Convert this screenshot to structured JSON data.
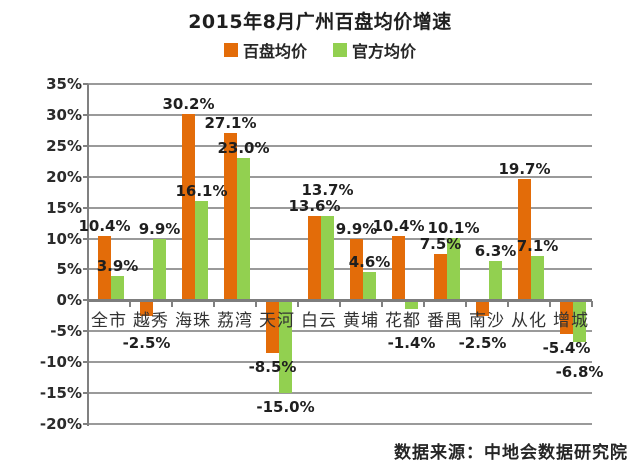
{
  "title": "2015年8月广州百盘均价增速",
  "source": "数据来源：中地会数据研究院",
  "legend": {
    "items": [
      {
        "label": "百盘均价",
        "color": "#E36C09",
        "icon": "orange-square-swatch"
      },
      {
        "label": "官方均价",
        "color": "#92D050",
        "icon": "green-square-swatch"
      }
    ]
  },
  "chart_data": {
    "type": "bar",
    "title": "2015年8月广州百盘均价增速",
    "xlabel": "",
    "ylabel": "",
    "categories": [
      "全市",
      "越秀",
      "海珠",
      "荔湾",
      "天河",
      "白云",
      "黄埔",
      "花都",
      "番禺",
      "南沙",
      "从化",
      "增城"
    ],
    "series": [
      {
        "name": "百盘均价",
        "color": "#E36C09",
        "values": [
          10.4,
          -2.5,
          30.2,
          27.1,
          -8.5,
          13.6,
          9.9,
          10.4,
          7.5,
          -2.5,
          19.7,
          -5.4
        ]
      },
      {
        "name": "官方均价",
        "color": "#92D050",
        "values": [
          3.9,
          9.9,
          16.1,
          23.0,
          -15.0,
          13.7,
          4.6,
          -1.4,
          10.1,
          6.3,
          7.1,
          -6.8
        ]
      }
    ],
    "data_label_suffix": "%",
    "data_label_decimals": 1,
    "ylim": [
      -20,
      35
    ],
    "ytick_step": 5,
    "ytick_labels": [
      "35%",
      "30%",
      "25%",
      "20%",
      "15%",
      "10%",
      "5%",
      "0%",
      "-5%",
      "-10%",
      "-15%",
      "-20%"
    ],
    "grid": true,
    "legend_position": "top"
  }
}
